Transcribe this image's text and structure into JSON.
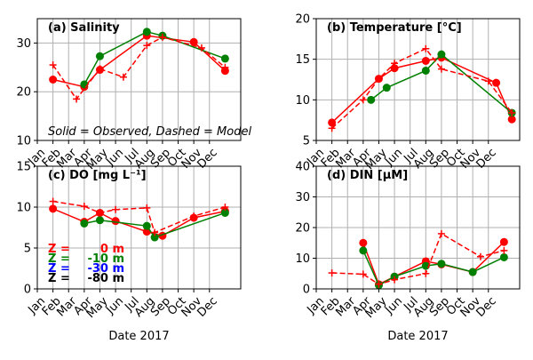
{
  "chart_data": [
    {
      "type": "line",
      "title": "(a) Salinity",
      "ylim": [
        10,
        35
      ],
      "yticks": [
        10,
        20,
        30
      ],
      "xlabel": "",
      "annotation": "Solid = Observed, Dashed = Model",
      "grid": true,
      "series": [
        {
          "depth": "0 m",
          "kind": "observed",
          "color": "#ff0000",
          "x": [
            1.0,
            3.0,
            4.0,
            7.0,
            10.0,
            12.0
          ],
          "y": [
            22.5,
            21.0,
            24.5,
            31.5,
            30.2,
            24.3
          ]
        },
        {
          "depth": "-10 m",
          "kind": "observed",
          "color": "#008000",
          "x": [
            3.0,
            4.0,
            7.0,
            8.0,
            12.0
          ],
          "y": [
            21.5,
            27.3,
            32.3,
            31.5,
            26.8
          ]
        },
        {
          "depth": "0 m",
          "kind": "model",
          "color": "#ff0000",
          "x": [
            1.0,
            2.5,
            4.0,
            5.5,
            7.0,
            8.0,
            10.5,
            12.0
          ],
          "y": [
            25.5,
            18.5,
            24.7,
            23.0,
            29.5,
            31.2,
            29.0,
            25.0
          ]
        }
      ]
    },
    {
      "type": "line",
      "title": "(b) Temperature [°C]",
      "ylim": [
        5,
        20
      ],
      "yticks": [
        5,
        10,
        15,
        20
      ],
      "xlabel": "",
      "grid": true,
      "series": [
        {
          "depth": "0 m",
          "kind": "observed",
          "color": "#ff0000",
          "x": [
            1.0,
            4.0,
            5.0,
            7.0,
            8.0,
            11.5,
            12.5
          ],
          "y": [
            7.2,
            12.6,
            13.9,
            14.8,
            15.2,
            12.1,
            7.6
          ]
        },
        {
          "depth": "-10 m",
          "kind": "observed",
          "color": "#008000",
          "x": [
            3.5,
            4.5,
            7.0,
            8.0,
            12.5
          ],
          "y": [
            10.0,
            11.5,
            13.6,
            15.6,
            8.4
          ]
        },
        {
          "depth": "0 m",
          "kind": "model",
          "color": "#ff0000",
          "x": [
            1.0,
            3.0,
            4.0,
            5.0,
            7.0,
            8.0,
            11.0,
            12.5
          ],
          "y": [
            6.5,
            10.0,
            12.6,
            14.5,
            16.3,
            13.8,
            12.3,
            8.4
          ]
        }
      ]
    },
    {
      "type": "line",
      "title": "(c) DO [mg L⁻¹]",
      "ylim": [
        0,
        15
      ],
      "yticks": [
        0,
        5,
        10,
        15
      ],
      "xlabel": "Date 2017",
      "grid": true,
      "legend": {
        "placement": "lower-left",
        "entries": [
          {
            "label": "Z =",
            "value": "0 m",
            "color": "#ff0000"
          },
          {
            "label": "Z =",
            "value": "-10 m",
            "color": "#008000"
          },
          {
            "label": "Z =",
            "value": "-30 m",
            "color": "#0000ff"
          },
          {
            "label": "Z =",
            "value": "-80 m",
            "color": "#000000"
          }
        ]
      },
      "series": [
        {
          "depth": "0 m",
          "kind": "observed",
          "color": "#ff0000",
          "x": [
            1.0,
            3.0,
            4.0,
            5.0,
            7.0,
            8.0,
            10.0,
            12.0
          ],
          "y": [
            9.8,
            8.2,
            9.3,
            8.3,
            7.0,
            6.5,
            8.7,
            9.5
          ]
        },
        {
          "depth": "-10 m",
          "kind": "observed",
          "color": "#008000",
          "x": [
            3.0,
            4.0,
            7.0,
            7.5,
            12.0
          ],
          "y": [
            8.0,
            8.4,
            7.7,
            6.3,
            9.3
          ]
        },
        {
          "depth": "0 m",
          "kind": "model",
          "color": "#ff0000",
          "x": [
            1.0,
            3.0,
            4.0,
            5.0,
            7.0,
            7.5,
            10.0,
            12.0
          ],
          "y": [
            10.7,
            10.1,
            9.3,
            9.7,
            9.9,
            6.9,
            8.9,
            10.0
          ]
        }
      ]
    },
    {
      "type": "line",
      "title": "(d) DIN [µM]",
      "ylim": [
        0,
        40
      ],
      "yticks": [
        0,
        10,
        20,
        30,
        40
      ],
      "xlabel": "Date 2017",
      "grid": true,
      "series": [
        {
          "depth": "0 m",
          "kind": "observed",
          "color": "#ff0000",
          "x": [
            3.0,
            4.0,
            5.0,
            7.0,
            8.0,
            10.0,
            12.0
          ],
          "y": [
            15.0,
            1.5,
            4.0,
            9.0,
            8.0,
            5.5,
            15.3
          ]
        },
        {
          "depth": "-10 m",
          "kind": "observed",
          "color": "#008000",
          "x": [
            3.0,
            4.0,
            5.0,
            7.0,
            8.0,
            10.0,
            12.0
          ],
          "y": [
            12.5,
            1.2,
            4.0,
            7.5,
            8.2,
            5.5,
            10.3
          ]
        },
        {
          "depth": "0 m",
          "kind": "model",
          "color": "#ff0000",
          "x": [
            1.0,
            3.0,
            4.0,
            5.0,
            7.0,
            8.0,
            10.5,
            12.0
          ],
          "y": [
            5.2,
            4.8,
            1.5,
            3.0,
            5.0,
            18.0,
            10.5,
            12.5
          ]
        }
      ]
    }
  ],
  "x_months": [
    "Jan",
    "Feb",
    "Mar",
    "Apr",
    "May",
    "Jun",
    "Jul",
    "Aug",
    "Sep",
    "Oct",
    "Nov",
    "Dec"
  ],
  "colors": {
    "observed_0m": "#ff0000",
    "observed_10m": "#008000",
    "model_0m": "#ff0000",
    "legend_30m": "#0000ff",
    "legend_80m": "#000000",
    "grid": "#b0b0b0"
  }
}
